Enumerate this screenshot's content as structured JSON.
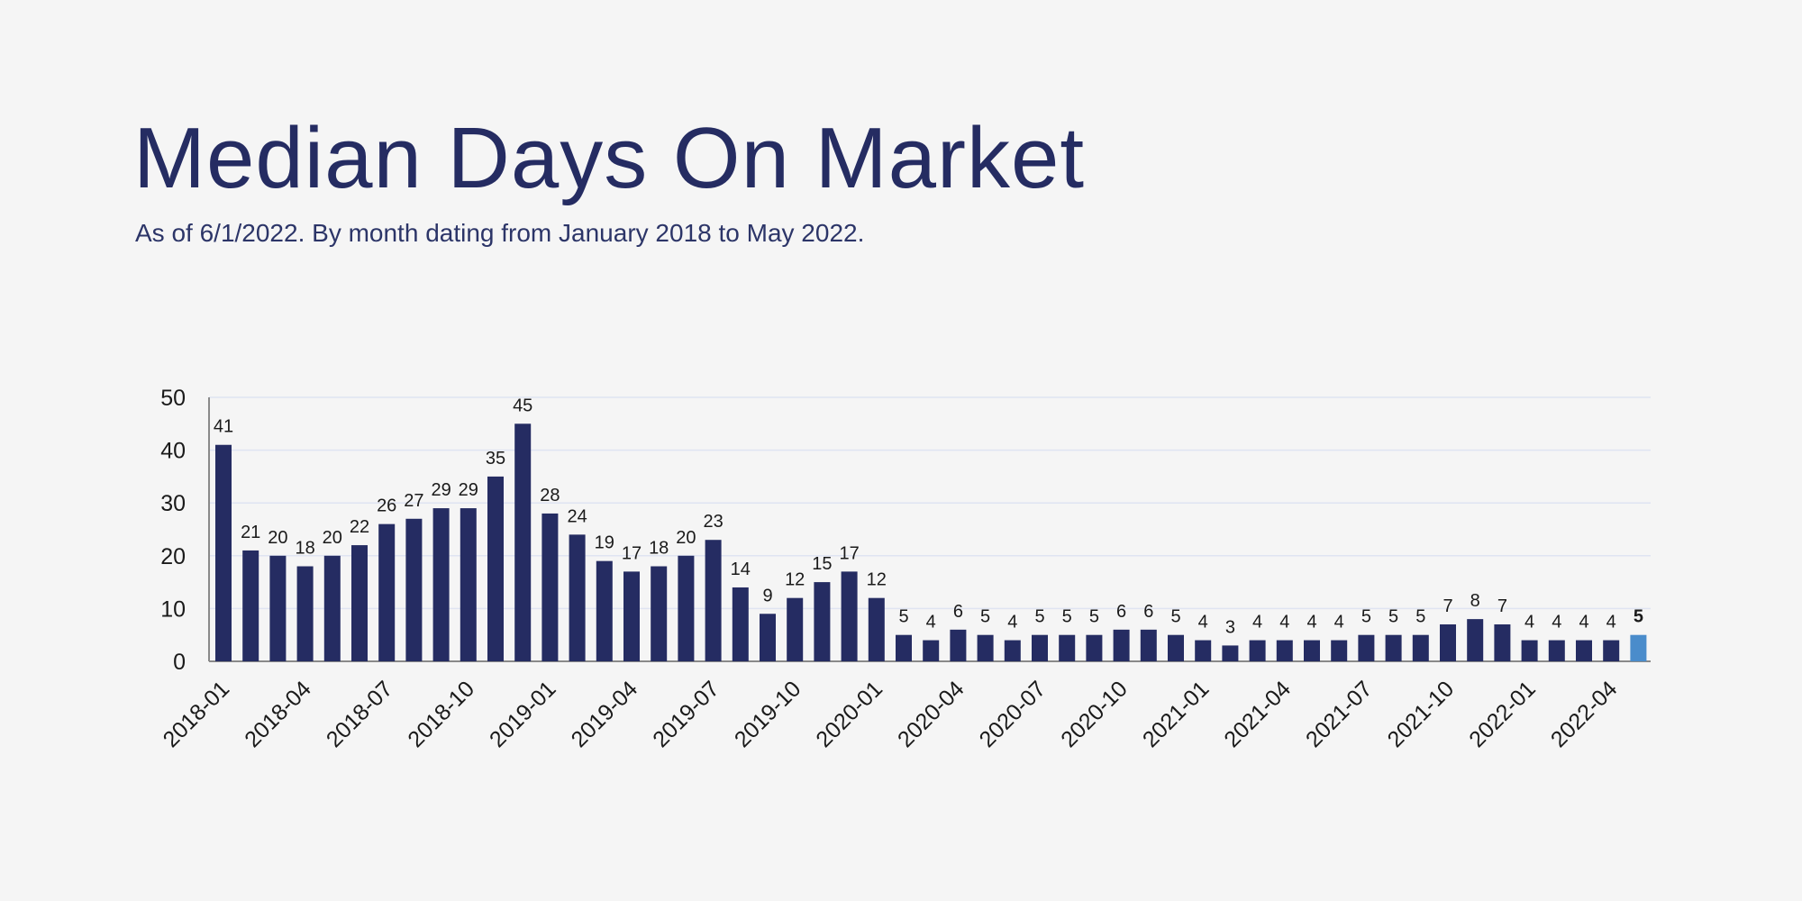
{
  "title": "Median Days On Market",
  "subtitle": "As of 6/1/2022. By month dating from January 2018 to May 2022.",
  "colors": {
    "bar": "#252c62",
    "highlight_bar": "#4a8ccb",
    "grid": "#dfe4f2",
    "axis": "#8a8a8a",
    "label": "#1a1a1a",
    "background": "#f5f5f5"
  },
  "chart_data": {
    "type": "bar",
    "title": "Median Days On Market",
    "xlabel": "",
    "ylabel": "",
    "ylim": [
      0,
      50
    ],
    "yticks": [
      0,
      10,
      20,
      30,
      40,
      50
    ],
    "grid": true,
    "categories": [
      "2018-01",
      "2018-02",
      "2018-03",
      "2018-04",
      "2018-05",
      "2018-06",
      "2018-07",
      "2018-08",
      "2018-09",
      "2018-10",
      "2018-11",
      "2018-12",
      "2019-01",
      "2019-02",
      "2019-03",
      "2019-04",
      "2019-05",
      "2019-06",
      "2019-07",
      "2019-08",
      "2019-09",
      "2019-10",
      "2019-11",
      "2019-12",
      "2020-01",
      "2020-02",
      "2020-03",
      "2020-04",
      "2020-05",
      "2020-06",
      "2020-07",
      "2020-08",
      "2020-09",
      "2020-10",
      "2020-11",
      "2020-12",
      "2021-01",
      "2021-02",
      "2021-03",
      "2021-04",
      "2021-05",
      "2021-06",
      "2021-07",
      "2021-08",
      "2021-09",
      "2021-10",
      "2021-11",
      "2021-12",
      "2022-01",
      "2022-02",
      "2022-03",
      "2022-04",
      "2022-05"
    ],
    "values": [
      41,
      21,
      20,
      18,
      20,
      22,
      26,
      27,
      29,
      29,
      35,
      45,
      28,
      24,
      19,
      17,
      18,
      20,
      23,
      14,
      9,
      12,
      15,
      17,
      12,
      5,
      4,
      6,
      5,
      4,
      5,
      5,
      5,
      6,
      6,
      5,
      4,
      3,
      4,
      4,
      4,
      4,
      5,
      5,
      5,
      7,
      8,
      7,
      4,
      4,
      4,
      4,
      5
    ],
    "tick_labels": [
      "2018-01",
      "2018-04",
      "2018-07",
      "2018-10",
      "2019-01",
      "2019-04",
      "2019-07",
      "2019-10",
      "2020-01",
      "2020-04",
      "2020-07",
      "2020-10",
      "2021-01",
      "2021-04",
      "2021-07",
      "2021-10",
      "2022-01",
      "2022-04"
    ],
    "highlight_index": 52
  }
}
